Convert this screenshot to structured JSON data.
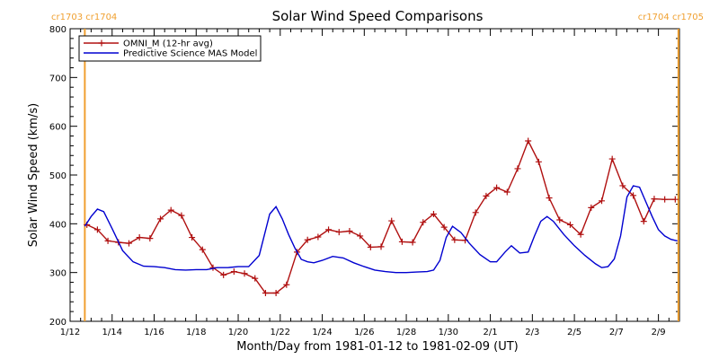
{
  "chart_data": {
    "type": "line",
    "title": "Solar Wind Speed Comparisons",
    "xlabel": "Month/Day from 1981-01-12 to 1981-02-09 (UT)",
    "ylabel": "Solar Wind Speed (km/s)",
    "x_unit": "days from 1981-01-12",
    "xlim": [
      0,
      29
    ],
    "ylim": [
      200,
      800
    ],
    "x_ticks": [
      {
        "x": 0,
        "label": "1/12"
      },
      {
        "x": 2,
        "label": "1/14"
      },
      {
        "x": 4,
        "label": "1/16"
      },
      {
        "x": 6,
        "label": "1/18"
      },
      {
        "x": 8,
        "label": "1/20"
      },
      {
        "x": 10,
        "label": "1/22"
      },
      {
        "x": 12,
        "label": "1/24"
      },
      {
        "x": 14,
        "label": "1/26"
      },
      {
        "x": 16,
        "label": "1/28"
      },
      {
        "x": 18,
        "label": "1/30"
      },
      {
        "x": 20,
        "label": "2/1"
      },
      {
        "x": 22,
        "label": "2/3"
      },
      {
        "x": 24,
        "label": "2/5"
      },
      {
        "x": 26,
        "label": "2/7"
      },
      {
        "x": 28,
        "label": "2/9"
      }
    ],
    "y_ticks": [
      200,
      300,
      400,
      500,
      600,
      700,
      800
    ],
    "legend_position": "top-left",
    "carrington_markers": [
      {
        "x": 0.7,
        "label": "cr1703 cr1704",
        "color": "#f0a030"
      },
      {
        "x": 28.95,
        "label": "cr1704 cr1705",
        "color": "#f0a030"
      }
    ],
    "series": [
      {
        "name": "OMNI_M (12-hr avg)",
        "color": "#b01010",
        "markers": true,
        "x": [
          0.8,
          1.3,
          1.8,
          2.3,
          2.8,
          3.3,
          3.8,
          4.3,
          4.8,
          5.3,
          5.8,
          6.3,
          6.8,
          7.3,
          7.8,
          8.3,
          8.8,
          9.3,
          9.8,
          10.3,
          10.8,
          11.3,
          11.8,
          12.3,
          12.8,
          13.3,
          13.8,
          14.3,
          14.8,
          15.3,
          15.8,
          16.3,
          16.8,
          17.3,
          17.8,
          18.3,
          18.8,
          19.3,
          19.8,
          20.3,
          20.8,
          21.3,
          21.8,
          22.3,
          22.8,
          23.3,
          23.8,
          24.3,
          24.8,
          25.3,
          25.8,
          26.3,
          26.8,
          27.3,
          27.8,
          28.3,
          28.8
        ],
        "y": [
          398,
          388,
          365,
          362,
          360,
          372,
          370,
          410,
          428,
          417,
          372,
          347,
          310,
          295,
          302,
          298,
          288,
          258,
          258,
          275,
          342,
          367,
          373,
          388,
          383,
          385,
          375,
          352,
          353,
          406,
          363,
          362,
          403,
          420,
          393,
          367,
          366,
          423,
          457,
          474,
          465,
          513,
          570,
          527,
          453,
          408,
          398,
          378,
          433,
          447,
          533,
          478,
          458,
          405,
          451,
          450,
          450
        ]
      },
      {
        "name": "Predictive Science MAS Model",
        "color": "#0000d0",
        "markers": false,
        "x": [
          0.7,
          1.0,
          1.3,
          1.6,
          2.0,
          2.5,
          3.0,
          3.5,
          4.0,
          4.5,
          5.0,
          5.5,
          6.0,
          6.5,
          7.0,
          7.5,
          8.0,
          8.5,
          9.0,
          9.5,
          9.8,
          10.1,
          10.4,
          10.7,
          11.0,
          11.3,
          11.6,
          12.0,
          12.5,
          13.0,
          13.5,
          14.0,
          14.5,
          15.0,
          15.5,
          16.0,
          16.5,
          17.0,
          17.3,
          17.6,
          17.9,
          18.2,
          18.6,
          19.0,
          19.5,
          20.0,
          20.3,
          20.7,
          21.0,
          21.4,
          21.8,
          22.1,
          22.4,
          22.7,
          23.0,
          23.5,
          24.0,
          24.5,
          25.0,
          25.3,
          25.6,
          25.9,
          26.2,
          26.5,
          26.8,
          27.1,
          27.4,
          27.7,
          28.0,
          28.3,
          28.6,
          28.9
        ],
        "y": [
          395,
          415,
          430,
          425,
          390,
          345,
          322,
          313,
          312,
          310,
          306,
          305,
          306,
          306,
          310,
          310,
          312,
          312,
          335,
          420,
          435,
          410,
          378,
          350,
          327,
          322,
          320,
          325,
          333,
          330,
          320,
          312,
          305,
          302,
          300,
          300,
          301,
          302,
          305,
          325,
          372,
          395,
          382,
          360,
          337,
          322,
          322,
          342,
          355,
          340,
          342,
          375,
          405,
          415,
          405,
          378,
          355,
          335,
          318,
          310,
          312,
          328,
          375,
          455,
          478,
          475,
          445,
          415,
          388,
          375,
          368,
          365
        ]
      }
    ]
  }
}
